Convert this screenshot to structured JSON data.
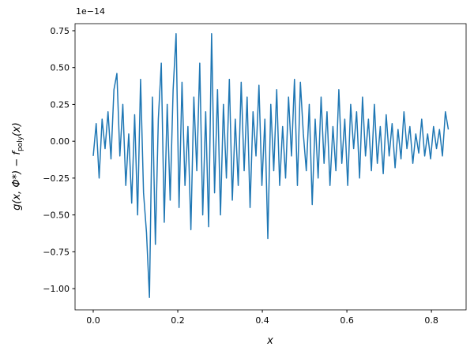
{
  "chart_data": {
    "type": "line",
    "x_label": "x",
    "y_label": {
      "main": "g(x, Φ*) − f",
      "sub": "poly",
      "tail": "(x)"
    },
    "y_offset_label": "1e−14",
    "xlim": [
      -0.043,
      0.882
    ],
    "ylim": [
      -1.144,
      0.798
    ],
    "xticks": [
      {
        "value": 0,
        "label": "0.0"
      },
      {
        "value": 0.2,
        "label": "0.2"
      },
      {
        "value": 0.4,
        "label": "0.4"
      },
      {
        "value": 0.6,
        "label": "0.6"
      },
      {
        "value": 0.8,
        "label": "0.8"
      }
    ],
    "yticks": [
      {
        "value": -1,
        "label": "−1.00"
      },
      {
        "value": -0.75,
        "label": "−0.75"
      },
      {
        "value": -0.5,
        "label": "−0.50"
      },
      {
        "value": -0.25,
        "label": "−0.25"
      },
      {
        "value": 0,
        "label": "0.00"
      },
      {
        "value": 0.25,
        "label": "0.25"
      },
      {
        "value": 0.5,
        "label": "0.50"
      },
      {
        "value": 0.75,
        "label": "0.75"
      }
    ],
    "grid": false,
    "x": [
      0,
      0.007,
      0.014,
      0.021,
      0.028,
      0.035,
      0.042,
      0.049,
      0.056,
      0.063,
      0.07,
      0.077,
      0.084,
      0.091,
      0.098,
      0.105,
      0.112,
      0.119,
      0.126,
      0.133,
      0.14,
      0.147,
      0.154,
      0.161,
      0.168,
      0.175,
      0.182,
      0.189,
      0.196,
      0.203,
      0.21,
      0.217,
      0.224,
      0.231,
      0.238,
      0.245,
      0.252,
      0.259,
      0.266,
      0.273,
      0.28,
      0.287,
      0.294,
      0.301,
      0.308,
      0.315,
      0.322,
      0.329,
      0.336,
      0.343,
      0.35,
      0.357,
      0.364,
      0.371,
      0.378,
      0.385,
      0.392,
      0.399,
      0.406,
      0.413,
      0.42,
      0.427,
      0.434,
      0.441,
      0.448,
      0.455,
      0.462,
      0.469,
      0.476,
      0.483,
      0.49,
      0.497,
      0.504,
      0.511,
      0.518,
      0.525,
      0.532,
      0.539,
      0.546,
      0.553,
      0.56,
      0.567,
      0.574,
      0.581,
      0.588,
      0.595,
      0.602,
      0.609,
      0.616,
      0.623,
      0.63,
      0.637,
      0.644,
      0.651,
      0.658,
      0.665,
      0.672,
      0.679,
      0.686,
      0.693,
      0.7,
      0.707,
      0.714,
      0.721,
      0.728,
      0.735,
      0.742,
      0.749,
      0.756,
      0.763,
      0.77,
      0.777,
      0.784,
      0.791,
      0.798,
      0.805,
      0.812,
      0.819,
      0.826,
      0.833,
      0.84
    ],
    "series": [
      {
        "color": "#1f77b4",
        "values": [
          -0.1,
          0.12,
          -0.25,
          0.15,
          -0.05,
          0.2,
          -0.12,
          0.35,
          0.46,
          -0.1,
          0.25,
          -0.3,
          0.05,
          -0.42,
          0.18,
          -0.5,
          0.42,
          -0.35,
          -0.62,
          -1.06,
          0.3,
          -0.7,
          0.15,
          0.53,
          -0.55,
          0.25,
          -0.4,
          0.35,
          0.73,
          -0.45,
          0.4,
          -0.3,
          0.1,
          -0.6,
          0.3,
          -0.2,
          0.53,
          -0.5,
          0.2,
          -0.58,
          0.73,
          -0.35,
          0.35,
          -0.5,
          0.25,
          -0.25,
          0.42,
          -0.4,
          0.15,
          -0.3,
          0.4,
          -0.2,
          0.3,
          -0.45,
          0.2,
          -0.1,
          0.38,
          -0.3,
          0.15,
          -0.66,
          0.25,
          -0.2,
          0.35,
          -0.3,
          0.1,
          -0.25,
          0.3,
          -0.1,
          0.42,
          -0.3,
          0.4,
          0.05,
          -0.2,
          0.25,
          -0.43,
          0.15,
          -0.25,
          0.3,
          -0.15,
          0.2,
          -0.3,
          0.1,
          -0.2,
          0.35,
          -0.15,
          0.15,
          -0.3,
          0.25,
          -0.05,
          0.2,
          -0.25,
          0.3,
          -0.1,
          0.15,
          -0.2,
          0.25,
          -0.15,
          0.1,
          -0.22,
          0.18,
          -0.1,
          0.12,
          -0.18,
          0.08,
          -0.12,
          0.2,
          -0.05,
          0.1,
          -0.15,
          0.05,
          -0.08,
          0.15,
          -0.1,
          0.05,
          -0.12,
          0.1,
          -0.05,
          0.08,
          -0.1,
          0.2,
          0.08
        ]
      }
    ]
  }
}
